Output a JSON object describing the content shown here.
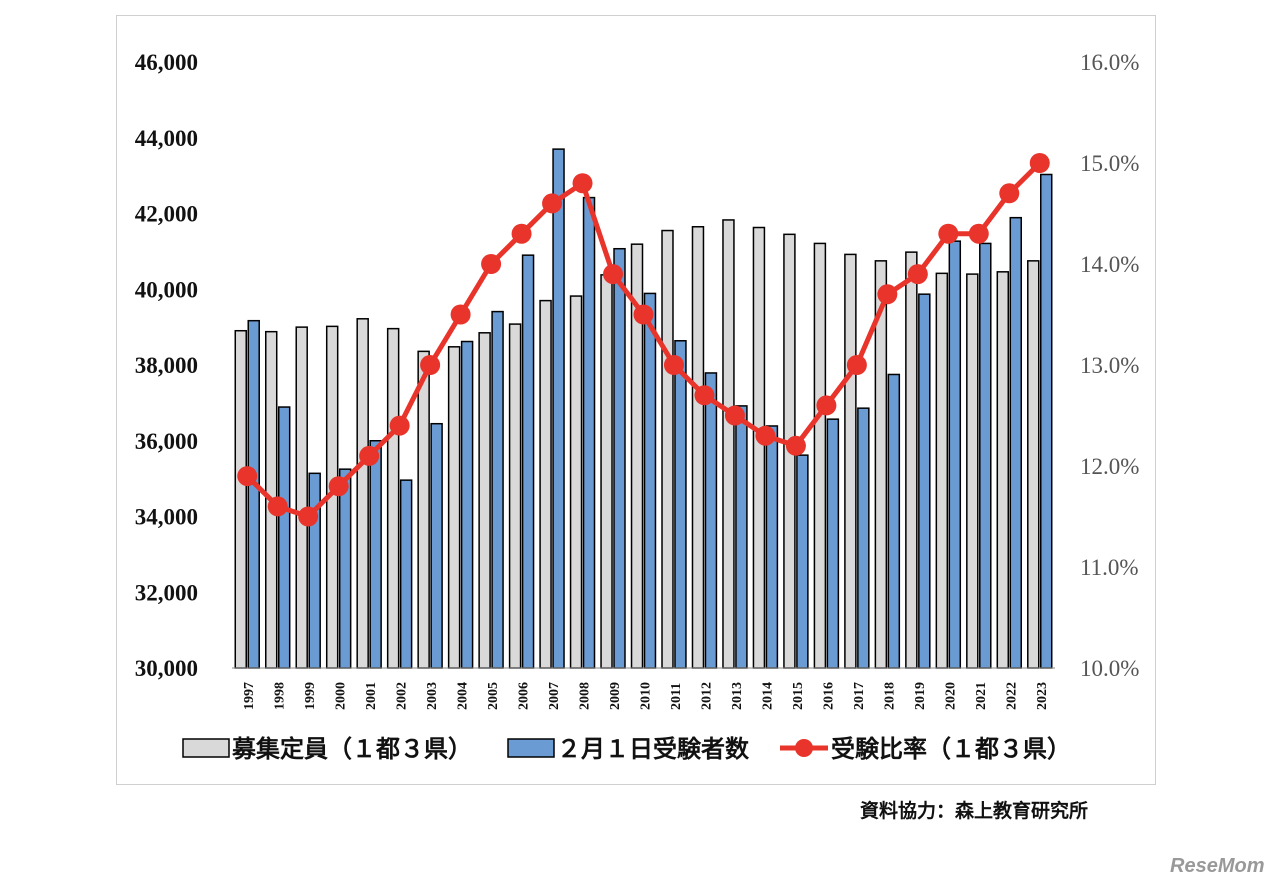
{
  "chart_data": {
    "type": "bar",
    "title": "",
    "categories": [
      "1997",
      "1998",
      "1999",
      "2000",
      "2001",
      "2002",
      "2003",
      "2004",
      "2005",
      "2006",
      "2007",
      "2008",
      "2009",
      "2010",
      "2011",
      "2012",
      "2013",
      "2014",
      "2015",
      "2016",
      "2017",
      "2018",
      "2019",
      "2020",
      "2021",
      "2022",
      "2023"
    ],
    "series": [
      {
        "name": "募集定員（１都３県）",
        "type": "bar",
        "axis": "left",
        "color": "#d9d9d9",
        "values": [
          38905,
          38880,
          39000,
          39020,
          39220,
          38960,
          38360,
          38480,
          38850,
          39080,
          39700,
          39820,
          40380,
          41190,
          41550,
          41650,
          41830,
          41630,
          41450,
          41210,
          40920,
          40750,
          40980,
          40420,
          40400,
          40460,
          40750
        ]
      },
      {
        "name": "２月１日受験者数",
        "type": "bar",
        "axis": "left",
        "color": "#6a9bd3",
        "values": [
          39170,
          36890,
          35140,
          35250,
          36000,
          34960,
          36450,
          38620,
          39410,
          40900,
          43700,
          42420,
          41070,
          39890,
          38640,
          37790,
          36920,
          36390,
          35620,
          36570,
          36860,
          37750,
          39870,
          41270,
          41210,
          41890,
          43030
        ]
      },
      {
        "name": "受験比率（１都３県）",
        "type": "line",
        "axis": "right",
        "color": "#e8342a",
        "values": [
          11.9,
          11.6,
          11.5,
          11.8,
          12.1,
          12.4,
          13.0,
          13.5,
          14.0,
          14.3,
          14.6,
          14.8,
          13.9,
          13.5,
          13.0,
          12.7,
          12.5,
          12.3,
          12.2,
          12.6,
          13.0,
          13.7,
          13.9,
          14.3,
          14.3,
          14.7,
          15.0
        ]
      }
    ],
    "ylim": [
      30000,
      46000
    ],
    "y2lim": [
      10.0,
      16.0
    ],
    "yticks": [
      "30,000",
      "32,000",
      "34,000",
      "36,000",
      "38,000",
      "40,000",
      "42,000",
      "44,000",
      "46,000"
    ],
    "y2ticks": [
      "10.0%",
      "11.0%",
      "12.0%",
      "13.0%",
      "14.0%",
      "15.0%",
      "16.0%"
    ],
    "legend_position": "bottom",
    "grid": false
  },
  "source": "資料協力：森上教育研究所",
  "logo": "ReseMom"
}
